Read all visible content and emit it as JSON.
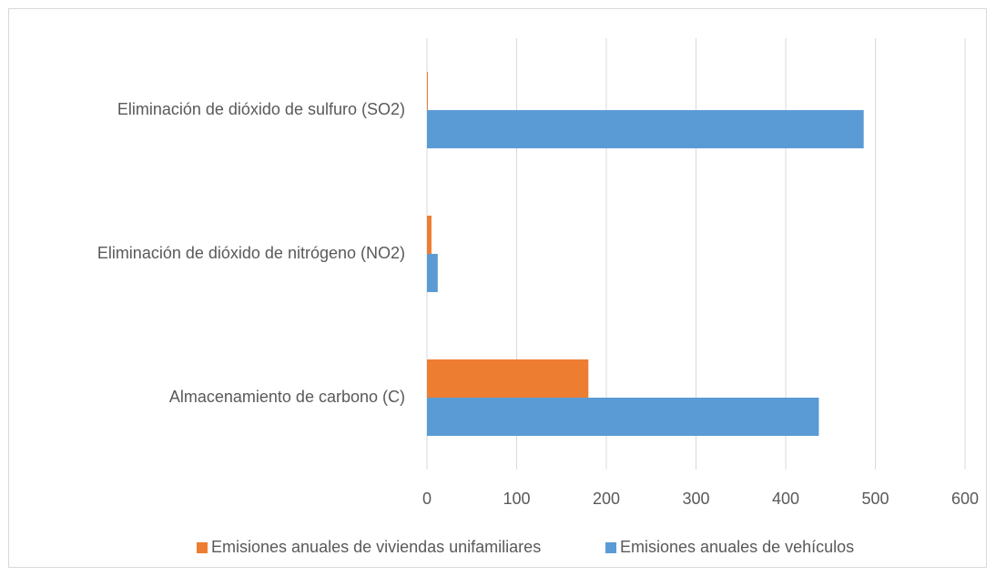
{
  "chart_data": {
    "type": "bar",
    "orientation": "horizontal",
    "categories": [
      "Almacenamiento de carbono (C)",
      "Eliminación de dióxido de nitrógeno (NO2)",
      "Eliminación de dióxido de sulfuro (SO2)"
    ],
    "series": [
      {
        "name": "Emisiones anuales de viviendas unifamiliares",
        "color": "#ed7d31",
        "values": [
          180,
          5,
          1
        ]
      },
      {
        "name": "Emisiones anuales de vehículos",
        "color": "#5b9bd5",
        "values": [
          437,
          12,
          487
        ]
      }
    ],
    "xlim": [
      0,
      600
    ],
    "xticks": [
      0,
      100,
      200,
      300,
      400,
      500,
      600
    ],
    "grid": true,
    "legend": "bottom"
  }
}
